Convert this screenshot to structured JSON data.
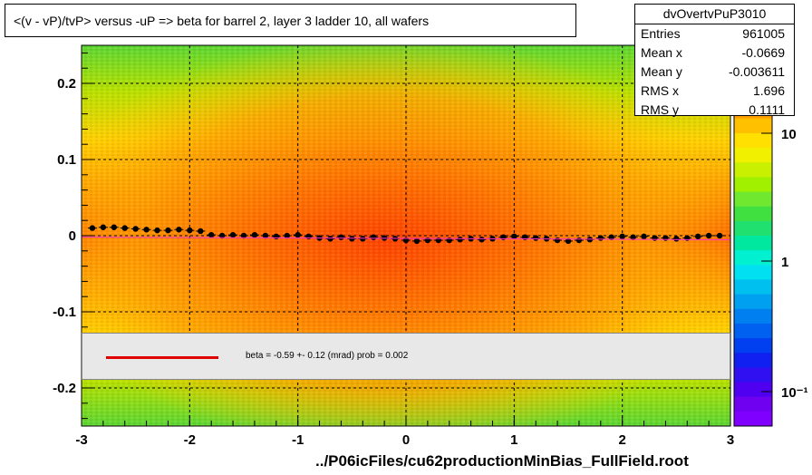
{
  "title": "<(v - vP)/tvP> versus  -uP => beta for barrel 2, layer 3 ladder 10, all wafers",
  "stats": {
    "name": "dvOvertvPuP3010",
    "rows": [
      {
        "label": "Entries",
        "value": "961005"
      },
      {
        "label": "Mean x",
        "value": "-0.0669"
      },
      {
        "label": "Mean y",
        "value": "-0.003611"
      },
      {
        "label": "RMS x",
        "value": "1.696"
      },
      {
        "label": "RMS y",
        "value": "0.1111"
      }
    ]
  },
  "fit_text": "beta =   -0.59 +-  0.12 (mrad) prob = 0.002",
  "footer": "../P06icFiles/cu62productionMinBias_FullField.root",
  "colors": {
    "fit_line": "#e00000",
    "profile_points": "#000000",
    "palette_top": "#ff0000",
    "palette_bottom": "#8000ff"
  },
  "chart_data": {
    "type": "heatmap",
    "title": "<(v - vP)/tvP> versus  -uP => beta for barrel 2, layer 3 ladder 10, all wafers",
    "xlim": [
      -3,
      3
    ],
    "ylim": [
      -0.25,
      0.25
    ],
    "x_ticks": [
      -3,
      -2,
      -1,
      0,
      1,
      2,
      3
    ],
    "y_ticks": [
      -0.2,
      -0.1,
      0,
      0.1,
      0.2
    ],
    "colorbar_ticks": [
      "10",
      "1",
      "10⁻¹"
    ],
    "grid": true,
    "profile": {
      "x": [
        -2.9,
        -2.8,
        -2.7,
        -2.6,
        -2.5,
        -2.4,
        -2.3,
        -2.2,
        -2.1,
        -2.0,
        -1.9,
        -1.8,
        -1.7,
        -1.6,
        -1.5,
        -1.4,
        -1.3,
        -1.2,
        -1.1,
        -1.0,
        -0.9,
        -0.8,
        -0.7,
        -0.6,
        -0.5,
        -0.4,
        -0.3,
        -0.2,
        -0.1,
        0.0,
        0.1,
        0.2,
        0.3,
        0.4,
        0.5,
        0.6,
        0.7,
        0.8,
        0.9,
        1.0,
        1.1,
        1.2,
        1.3,
        1.4,
        1.5,
        1.6,
        1.7,
        1.8,
        1.9,
        2.0,
        2.1,
        2.2,
        2.3,
        2.4,
        2.5,
        2.6,
        2.7,
        2.8,
        2.9
      ],
      "y": [
        0.01,
        0.011,
        0.011,
        0.01,
        0.009,
        0.008,
        0.007,
        0.007,
        0.008,
        0.007,
        0.006,
        0.001,
        0.0,
        0.001,
        0.0,
        0.001,
        0.0,
        -0.001,
        0.0,
        0.001,
        -0.001,
        -0.003,
        -0.004,
        -0.002,
        -0.004,
        -0.004,
        -0.002,
        -0.003,
        -0.004,
        -0.006,
        -0.007,
        -0.006,
        -0.006,
        -0.006,
        -0.005,
        -0.004,
        -0.005,
        -0.004,
        -0.002,
        -0.001,
        -0.002,
        -0.003,
        -0.004,
        -0.006,
        -0.007,
        -0.006,
        -0.005,
        -0.003,
        -0.002,
        -0.001,
        -0.002,
        -0.001,
        -0.003,
        -0.003,
        -0.004,
        -0.003,
        -0.001,
        0.0,
        0.0
      ]
    },
    "fit": {
      "slope_mrad": -0.59,
      "error_mrad": 0.12,
      "prob": 0.002,
      "intercept": -0.0036
    }
  }
}
